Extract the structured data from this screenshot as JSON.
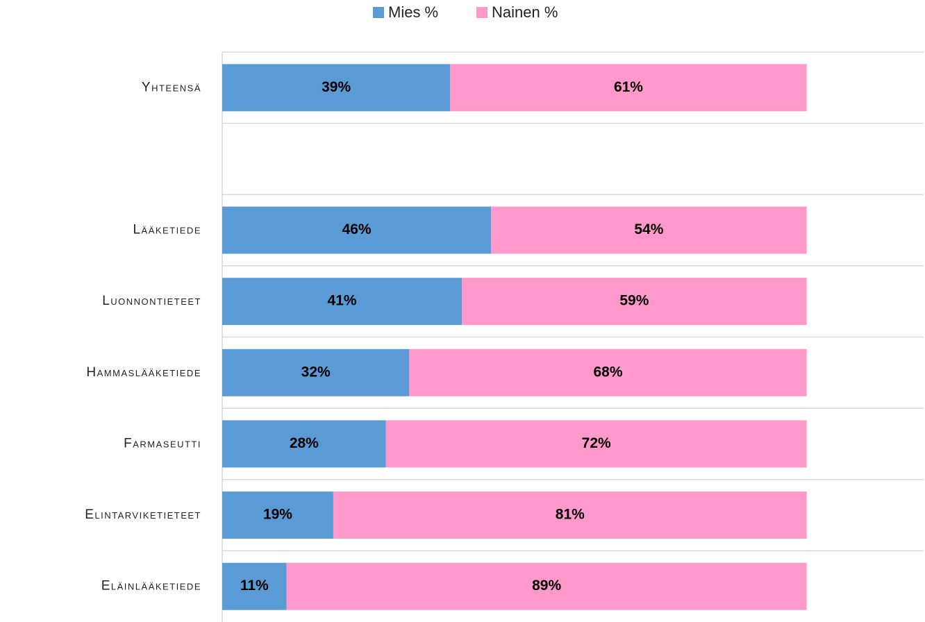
{
  "chart_data": {
    "type": "stacked_barh",
    "categories": [
      "Yhteensä",
      null,
      "Lääketiede",
      "Luonnontieteet",
      "Hammaslääketiede",
      "Farmaseutti",
      "Elintarviketieteet",
      "Eläinlääketiede"
    ],
    "series": [
      {
        "name": "Mies %",
        "color": "#5b9bd5",
        "values": [
          39,
          null,
          46,
          41,
          32,
          28,
          19,
          11
        ],
        "value_labels": [
          "39%",
          null,
          "46%",
          "41%",
          "32%",
          "28%",
          "19%",
          "11%"
        ]
      },
      {
        "name": "Nainen %",
        "color": "#ff99cc",
        "values": [
          61,
          null,
          54,
          59,
          68,
          72,
          81,
          89
        ],
        "value_labels": [
          "61%",
          null,
          "54%",
          "59%",
          "68%",
          "72%",
          "81%",
          "89%"
        ]
      }
    ],
    "xlim": [
      0,
      120
    ],
    "legend": "top"
  }
}
